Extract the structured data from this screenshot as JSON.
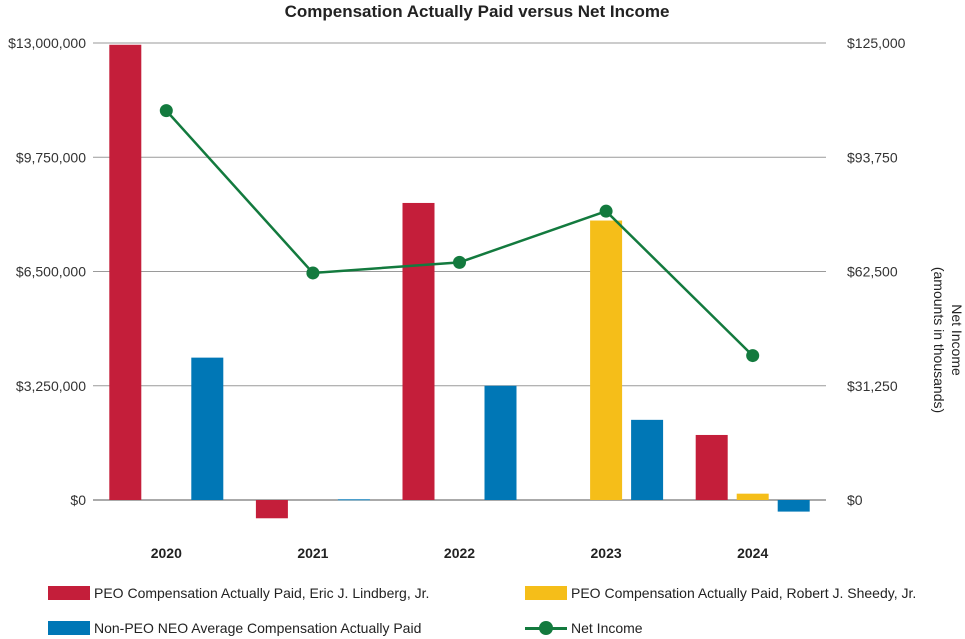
{
  "chart_data": {
    "type": "bar+line",
    "title": "Compensation Actually Paid versus Net Income",
    "categories": [
      "2020",
      "2021",
      "2022",
      "2023",
      "2024"
    ],
    "y_left": {
      "range": [
        0,
        13000000
      ],
      "ticks": [
        "$0",
        "$3,250,000",
        "$6,500,000",
        "$9,750,000",
        "$13,000,000"
      ],
      "tick_values": [
        0,
        3250000,
        6500000,
        9750000,
        13000000
      ]
    },
    "y_right": {
      "label_line1": "Net Income",
      "label_line2": "(amounts in thousands)",
      "range": [
        0,
        125000
      ],
      "ticks": [
        "$0",
        "$31,250",
        "$62,500",
        "$93,750",
        "$125,000"
      ],
      "tick_values": [
        0,
        31250,
        62500,
        93750,
        125000
      ]
    },
    "series": [
      {
        "name": "PEO Compensation Actually Paid, Eric J. Lindberg, Jr.",
        "type": "bar",
        "axis": "left",
        "color": "#c41e3a",
        "values": [
          12950000,
          -520000,
          8450000,
          null,
          1850000
        ]
      },
      {
        "name": "PEO Compensation Actually Paid, Robert J. Sheedy, Jr.",
        "type": "bar",
        "axis": "left",
        "color": "#f5be19",
        "values": [
          null,
          null,
          null,
          7950000,
          180000
        ]
      },
      {
        "name": "Non-PEO NEO Average Compensation Actually Paid",
        "type": "bar",
        "axis": "left",
        "color": "#0077b6",
        "values": [
          4050000,
          20000,
          3250000,
          2280000,
          -330000
        ]
      },
      {
        "name": "Net Income",
        "type": "line",
        "axis": "right",
        "color": "#137a3e",
        "values": [
          106500,
          62100,
          65000,
          79000,
          39500
        ]
      }
    ],
    "legend_position": "bottom"
  }
}
